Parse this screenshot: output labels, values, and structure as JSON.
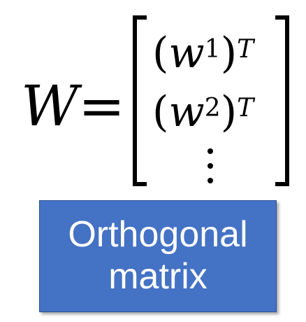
{
  "equation": {
    "lhs": "W",
    "equals": "=",
    "rows": [
      {
        "open_paren": "(",
        "var": "w",
        "index": "1",
        "close_paren": ")",
        "transpose": "T"
      },
      {
        "open_paren": "(",
        "var": "w",
        "index": "2",
        "close_paren": ")",
        "transpose": "T"
      }
    ]
  },
  "label": {
    "line1": "Orthogonal",
    "line2": "matrix",
    "background_color": "#4472c4",
    "text_color": "#ffffff"
  }
}
